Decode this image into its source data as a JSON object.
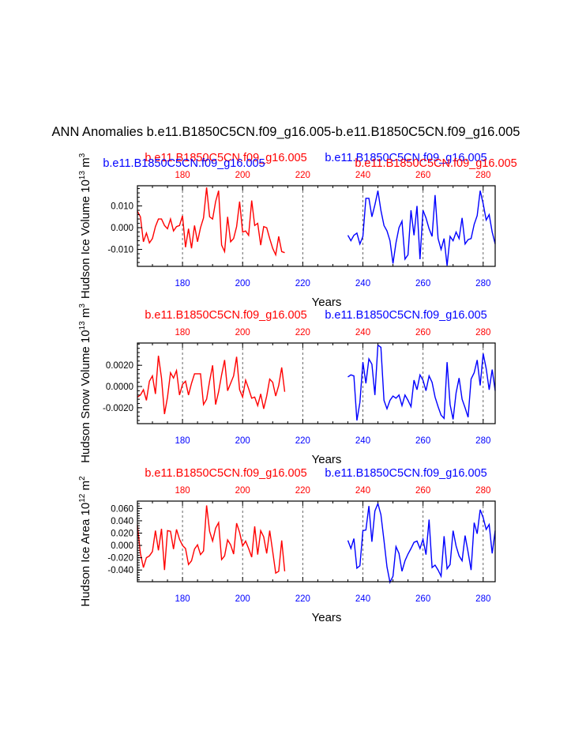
{
  "figure_title": "ANN Anomalies b.e11.B1850C5CN.f09_g16.005-b.e11.B1850C5CN.f09_g16.005",
  "xlabel": "Years",
  "colors": {
    "run1": "#ff0000",
    "run2": "#0000ff",
    "axis": "#000000",
    "grid": "#555555"
  },
  "chart_data": [
    {
      "type": "line",
      "ylabel": "Hudson Ice Volume 10",
      "ylabel_exp": "13",
      "ylabel_unit": " m",
      "ylabel_unit_exp": "3",
      "xlim": [
        165,
        284
      ],
      "ylim": [
        -0.0178,
        0.0193
      ],
      "xticks": [
        "180",
        "200",
        "220",
        "240",
        "260",
        "280"
      ],
      "xtick_values": [
        180,
        200,
        220,
        240,
        260,
        280
      ],
      "yticks": [
        "0.010",
        "0.000",
        "-0.010"
      ],
      "ytick_values": [
        0.01,
        0.0,
        -0.01
      ],
      "series": [
        {
          "name": "b.e11.B1850C5CN.f09_g16.005",
          "color": "#ff0000",
          "x": [
            165,
            166,
            167,
            168,
            169,
            170,
            171,
            172,
            173,
            174,
            175,
            176,
            177,
            178,
            179,
            180,
            181,
            182,
            183,
            184,
            185,
            186,
            187,
            188,
            189,
            190,
            191,
            192,
            193,
            194,
            195,
            196,
            197,
            198,
            199,
            200,
            201,
            202,
            203,
            204,
            205,
            206,
            207,
            208,
            209,
            210,
            211,
            212,
            213,
            214
          ],
          "values": [
            0.0075,
            0.005,
            -0.0065,
            -0.0025,
            -0.007,
            -0.005,
            0.0005,
            0.004,
            0.004,
            0.001,
            -0.0005,
            0.004,
            -0.0015,
            0.0005,
            0.001,
            0.0055,
            -0.009,
            -0.0005,
            -0.0095,
            0.001,
            -0.0065,
            0.0,
            0.0045,
            0.0185,
            0.005,
            0.004,
            0.012,
            0.017,
            -0.008,
            -0.011,
            0.005,
            -0.0065,
            -0.005,
            0.0005,
            0.012,
            -0.002,
            -0.0015,
            -0.0035,
            0.0125,
            0.001,
            0.002,
            -0.008,
            0.0005,
            0.0,
            -0.005,
            -0.0095,
            -0.0125,
            -0.004,
            -0.011,
            -0.0115
          ]
        },
        {
          "name": "b.e11.B1850C5CN.f09_g16.005",
          "color": "#0000ff",
          "x": [
            235,
            236,
            237,
            238,
            239,
            240,
            241,
            242,
            243,
            244,
            245,
            246,
            247,
            248,
            249,
            250,
            251,
            252,
            253,
            254,
            255,
            256,
            257,
            258,
            259,
            260,
            261,
            262,
            263,
            264,
            265,
            266,
            267,
            268,
            269,
            270,
            271,
            272,
            273,
            274,
            275,
            276,
            277,
            278,
            279,
            280,
            281,
            282,
            283,
            284
          ],
          "values": [
            -0.0035,
            -0.006,
            -0.0035,
            -0.0025,
            -0.0075,
            -0.004,
            0.0135,
            0.0135,
            0.005,
            0.0105,
            0.017,
            0.008,
            0.001,
            -0.0015,
            -0.006,
            -0.0165,
            -0.007,
            0.0,
            0.003,
            -0.0145,
            -0.0125,
            0.008,
            -0.0035,
            0.01,
            -0.0145,
            0.008,
            0.0045,
            -0.0005,
            -0.004,
            0.015,
            -0.005,
            -0.01,
            -0.005,
            -0.0175,
            -0.004,
            -0.006,
            -0.002,
            -0.005,
            0.0045,
            -0.0075,
            -0.0055,
            -0.005,
            0.0015,
            0.0055,
            0.017,
            0.011,
            0.0035,
            0.006,
            -0.002,
            -0.0075
          ]
        }
      ],
      "top_labels": {
        "left": "b.e11.B1850C5CN.f09_g16.005",
        "right": "b.e11.B1850C5CN.f09_g16.005"
      },
      "top_labels_shifted": {
        "left": "b.e11.B1850C5CN.f09_g16.005",
        "right": "b.e11.B1850C5CN.f09_g16.005"
      }
    },
    {
      "type": "line",
      "ylabel": "Hudson Snow Volume 10",
      "ylabel_exp": "13",
      "ylabel_unit": " m",
      "ylabel_unit_exp": "3",
      "xlim": [
        165,
        284
      ],
      "ylim": [
        -0.0035,
        0.0041
      ],
      "xticks": [
        "180",
        "200",
        "220",
        "240",
        "260",
        "280"
      ],
      "xtick_values": [
        180,
        200,
        220,
        240,
        260,
        280
      ],
      "yticks": [
        "0.0020",
        "0.0000",
        "-0.0020"
      ],
      "ytick_values": [
        0.002,
        0.0,
        -0.002
      ],
      "series": [
        {
          "name": "b.e11.B1850C5CN.f09_g16.005",
          "color": "#ff0000",
          "x": [
            165,
            166,
            167,
            168,
            169,
            170,
            171,
            172,
            173,
            174,
            175,
            176,
            177,
            178,
            179,
            180,
            181,
            182,
            183,
            184,
            185,
            186,
            187,
            188,
            189,
            190,
            191,
            192,
            193,
            194,
            195,
            196,
            197,
            198,
            199,
            200,
            201,
            202,
            203,
            204,
            205,
            206,
            207,
            208,
            209,
            210,
            211,
            212,
            213,
            214
          ],
          "values": [
            -0.001,
            -0.0008,
            -0.0003,
            -0.0013,
            0.0005,
            0.001,
            -0.0007,
            0.0029,
            0.0008,
            -0.0026,
            -0.001,
            0.0013,
            0.0008,
            0.0015,
            -0.0008,
            0.0002,
            0.0005,
            -0.0008,
            0.0003,
            0.0012,
            0.0012,
            0.0012,
            -0.0017,
            -0.0012,
            0.0005,
            0.002,
            -0.0017,
            -0.0005,
            0.0011,
            0.0025,
            -0.0004,
            0.0003,
            0.001,
            0.0028,
            -0.0003,
            -0.001,
            0.0006,
            -0.0002,
            -0.0011,
            -0.001,
            -0.0018,
            -0.0007,
            -0.0021,
            -0.0009,
            0.0007,
            0.0004,
            -0.0009,
            0.0001,
            0.0018,
            -0.0005
          ]
        },
        {
          "name": "b.e11.B1850C5CN.f09_g16.005",
          "color": "#0000ff",
          "x": [
            235,
            236,
            237,
            238,
            239,
            240,
            241,
            242,
            243,
            244,
            245,
            246,
            247,
            248,
            249,
            250,
            251,
            252,
            253,
            254,
            255,
            256,
            257,
            258,
            259,
            260,
            261,
            262,
            263,
            264,
            265,
            266,
            267,
            268,
            269,
            270,
            271,
            272,
            273,
            274,
            275,
            276,
            277,
            278,
            279,
            280,
            281,
            282,
            283,
            284
          ],
          "values": [
            0.0009,
            0.0011,
            0.001,
            -0.0032,
            -0.0015,
            0.0023,
            0.0003,
            0.0026,
            0.0021,
            -0.0008,
            0.0039,
            0.0037,
            -0.0013,
            -0.0021,
            -0.0013,
            -0.0009,
            -0.0011,
            -0.0008,
            -0.0018,
            -0.0008,
            -0.0013,
            -0.0019,
            0.0006,
            -0.0003,
            0.0011,
            0.0006,
            -0.0004,
            0.001,
            0.0004,
            -0.001,
            -0.0019,
            -0.0027,
            -0.003,
            0.0023,
            -0.0017,
            -0.0031,
            -0.0006,
            0.0008,
            -0.0012,
            -0.002,
            -0.0029,
            0.0007,
            0.0013,
            0.0025,
            0.0001,
            0.0031,
            0.0017,
            -0.0003,
            0.0016,
            -0.0004
          ]
        }
      ],
      "top_labels": {
        "left": "b.e11.B1850C5CN.f09_g16.005",
        "right": "b.e11.B1850C5CN.f09_g16.005"
      }
    },
    {
      "type": "line",
      "ylabel": "Hudson Ice Area 10",
      "ylabel_exp": "12",
      "ylabel_unit": " m",
      "ylabel_unit_exp": "2",
      "xlim": [
        165,
        284
      ],
      "ylim": [
        -0.059,
        0.072
      ],
      "xticks": [
        "180",
        "200",
        "220",
        "240",
        "260",
        "280"
      ],
      "xtick_values": [
        180,
        200,
        220,
        240,
        260,
        280
      ],
      "yticks": [
        "0.060",
        "0.040",
        "0.020",
        "0.000",
        "-0.020",
        "-0.040"
      ],
      "ytick_values": [
        0.06,
        0.04,
        0.02,
        0.0,
        -0.02,
        -0.04
      ],
      "series": [
        {
          "name": "b.e11.B1850C5CN.f09_g16.005",
          "color": "#ff0000",
          "x": [
            165,
            166,
            167,
            168,
            169,
            170,
            171,
            172,
            173,
            174,
            175,
            176,
            177,
            178,
            179,
            180,
            181,
            182,
            183,
            184,
            185,
            186,
            187,
            188,
            189,
            190,
            191,
            192,
            193,
            194,
            195,
            196,
            197,
            198,
            199,
            200,
            201,
            202,
            203,
            204,
            205,
            206,
            207,
            208,
            209,
            210,
            211,
            212,
            213,
            214
          ],
          "values": [
            0.033,
            -0.013,
            -0.036,
            -0.02,
            -0.017,
            -0.01,
            0.024,
            -0.008,
            0.027,
            -0.04,
            0.024,
            0.023,
            -0.006,
            0.026,
            0.01,
            0.0,
            -0.005,
            -0.031,
            -0.025,
            -0.006,
            0.001,
            -0.015,
            -0.009,
            0.065,
            0.023,
            0.007,
            0.028,
            0.037,
            -0.023,
            -0.017,
            0.009,
            0.001,
            -0.014,
            0.036,
            0.021,
            -0.001,
            0.007,
            -0.005,
            -0.019,
            0.031,
            -0.015,
            0.024,
            0.014,
            -0.013,
            0.024,
            -0.01,
            -0.045,
            -0.042,
            0.008,
            -0.042
          ]
        },
        {
          "name": "b.e11.B1850C5CN.f09_g16.005",
          "color": "#0000ff",
          "x": [
            235,
            236,
            237,
            238,
            239,
            240,
            241,
            242,
            243,
            244,
            245,
            246,
            247,
            248,
            249,
            250,
            251,
            252,
            253,
            254,
            255,
            256,
            257,
            258,
            259,
            260,
            261,
            262,
            263,
            264,
            265,
            266,
            267,
            268,
            269,
            270,
            271,
            272,
            273,
            274,
            275,
            276,
            277,
            278,
            279,
            280,
            281,
            282,
            283,
            284
          ],
          "values": [
            0.008,
            -0.005,
            0.011,
            -0.037,
            -0.033,
            0.024,
            0.025,
            0.064,
            0.006,
            0.056,
            0.068,
            0.05,
            0.008,
            -0.035,
            -0.06,
            -0.05,
            -0.002,
            -0.013,
            -0.042,
            -0.025,
            -0.014,
            -0.005,
            0.005,
            0.007,
            -0.005,
            0.01,
            -0.015,
            0.042,
            -0.036,
            -0.032,
            -0.04,
            -0.05,
            0.015,
            -0.038,
            -0.031,
            0.024,
            -0.001,
            -0.017,
            -0.025,
            0.016,
            -0.011,
            -0.04,
            0.037,
            0.019,
            0.058,
            0.045,
            0.026,
            0.034,
            -0.013,
            0.024
          ]
        }
      ],
      "top_labels": {
        "left": "b.e11.B1850C5CN.f09_g16.005",
        "right": "b.e11.B1850C5CN.f09_g16.005"
      }
    }
  ]
}
